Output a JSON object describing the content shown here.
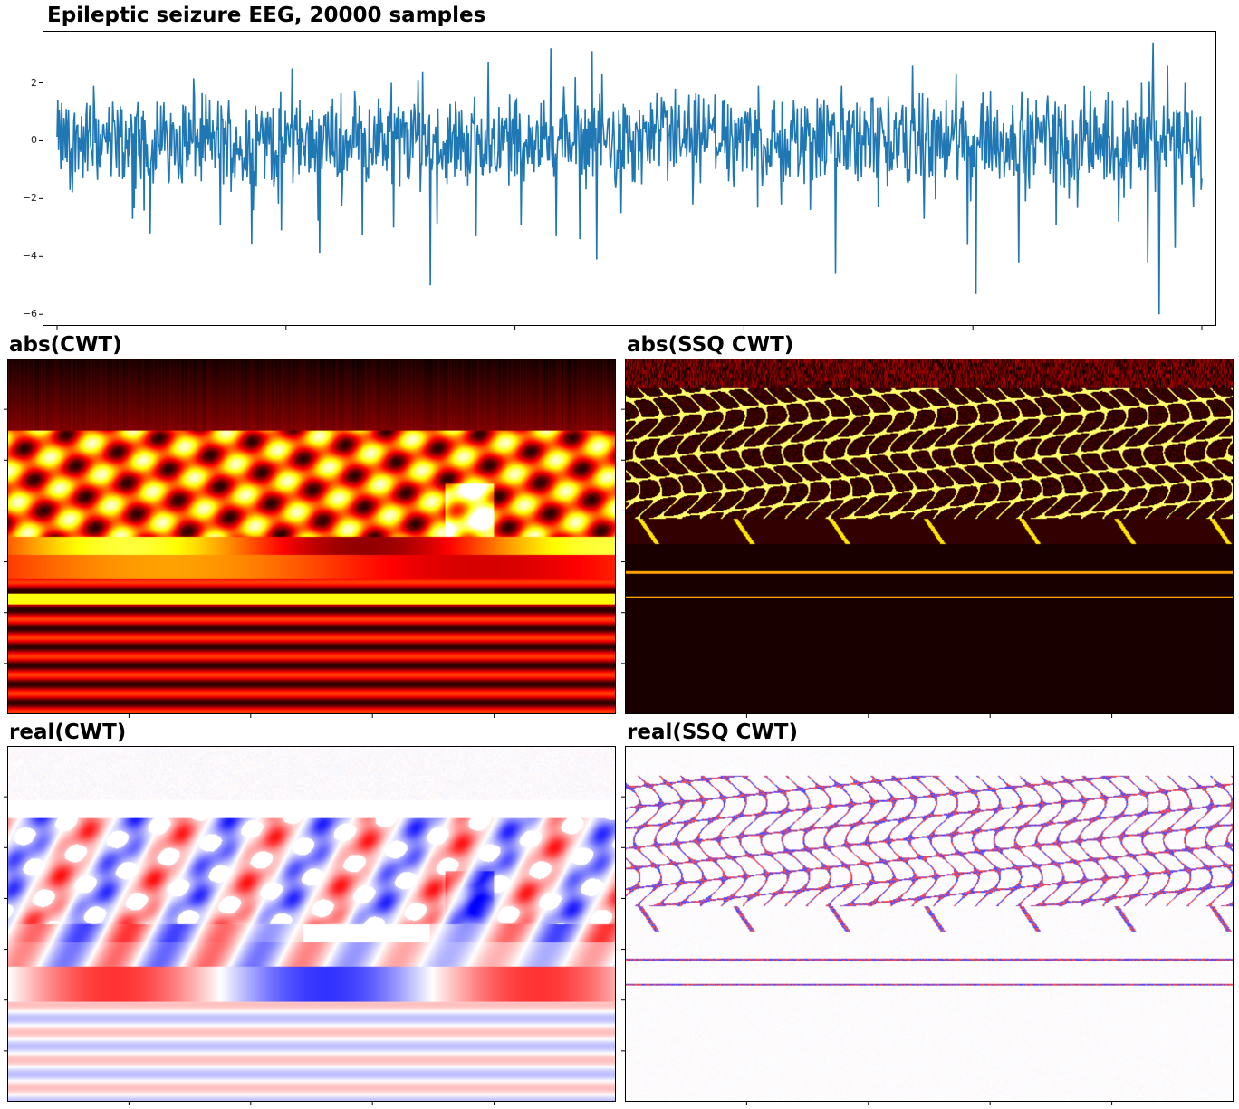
{
  "titles": {
    "eeg": "Epileptic seizure EEG, 20000 samples",
    "abs_cwt": "abs(CWT)",
    "abs_ssq": "abs(SSQ CWT)",
    "real_cwt": "real(CWT)",
    "real_ssq": "real(SSQ CWT)"
  },
  "chart_data": [
    {
      "type": "line",
      "title": "Epileptic seizure EEG, 20000 samples",
      "xlabel": "",
      "ylabel": "",
      "xlim": [
        0,
        20000
      ],
      "ylim": [
        -6.4,
        3.8
      ],
      "ytick_labels": [
        "2",
        "0",
        "−2",
        "−4",
        "−6"
      ],
      "ytick_values": [
        2,
        0,
        -2,
        -4,
        -6
      ],
      "series_color": "#1f77b4",
      "peaks": [
        {
          "x": 220,
          "y": -1.7
        },
        {
          "x": 640,
          "y": 1.9
        },
        {
          "x": 1320,
          "y": -2.7
        },
        {
          "x": 1620,
          "y": -3.2
        },
        {
          "x": 2600,
          "y": 1.6
        },
        {
          "x": 2850,
          "y": -2.9
        },
        {
          "x": 3420,
          "y": -2.4
        },
        {
          "x": 3920,
          "y": -3.1
        },
        {
          "x": 4100,
          "y": 2.5
        },
        {
          "x": 4580,
          "y": -3.9
        },
        {
          "x": 5200,
          "y": 1.7
        },
        {
          "x": 5880,
          "y": -3.0
        },
        {
          "x": 6300,
          "y": 2.1
        },
        {
          "x": 6380,
          "y": 2.4
        },
        {
          "x": 6520,
          "y": -5.0
        },
        {
          "x": 7320,
          "y": -3.3
        },
        {
          "x": 7900,
          "y": 1.6
        },
        {
          "x": 8100,
          "y": -2.9
        },
        {
          "x": 8450,
          "y": 1.3
        },
        {
          "x": 8630,
          "y": 3.2
        },
        {
          "x": 8720,
          "y": -3.3
        },
        {
          "x": 9050,
          "y": 2.2
        },
        {
          "x": 9130,
          "y": -3.4
        },
        {
          "x": 9350,
          "y": 3.1
        },
        {
          "x": 9420,
          "y": -4.1
        },
        {
          "x": 9520,
          "y": 2.3
        },
        {
          "x": 9850,
          "y": -2.5
        },
        {
          "x": 10800,
          "y": 1.8
        },
        {
          "x": 11100,
          "y": -2.2
        },
        {
          "x": 12250,
          "y": 1.9
        },
        {
          "x": 12650,
          "y": -2.2
        },
        {
          "x": 13600,
          "y": -4.6
        },
        {
          "x": 13700,
          "y": 1.9
        },
        {
          "x": 14350,
          "y": -2.3
        },
        {
          "x": 14950,
          "y": 2.6
        },
        {
          "x": 15150,
          "y": -2.7
        },
        {
          "x": 15700,
          "y": 2.3
        },
        {
          "x": 15900,
          "y": -3.6
        },
        {
          "x": 16050,
          "y": -5.3
        },
        {
          "x": 16300,
          "y": 1.7
        },
        {
          "x": 16800,
          "y": -4.2
        },
        {
          "x": 17450,
          "y": -2.9
        },
        {
          "x": 17950,
          "y": 1.9
        },
        {
          "x": 18550,
          "y": -2.8
        },
        {
          "x": 18950,
          "y": 2.0
        },
        {
          "x": 19050,
          "y": -4.2
        },
        {
          "x": 19150,
          "y": 3.4
        },
        {
          "x": 19250,
          "y": -6.0
        },
        {
          "x": 19400,
          "y": 2.6
        },
        {
          "x": 19530,
          "y": -3.7
        },
        {
          "x": 19700,
          "y": 2.0
        },
        {
          "x": 19850,
          "y": -2.3
        },
        {
          "x": 19980,
          "y": -1.7
        }
      ]
    },
    {
      "type": "heatmap",
      "title": "abs(CWT)",
      "colormap": "hot"
    },
    {
      "type": "heatmap",
      "title": "abs(SSQ CWT)",
      "colormap": "hot"
    },
    {
      "type": "heatmap",
      "title": "real(CWT)",
      "colormap": "bwr"
    },
    {
      "type": "heatmap",
      "title": "real(SSQ CWT)",
      "colormap": "bwr"
    }
  ]
}
